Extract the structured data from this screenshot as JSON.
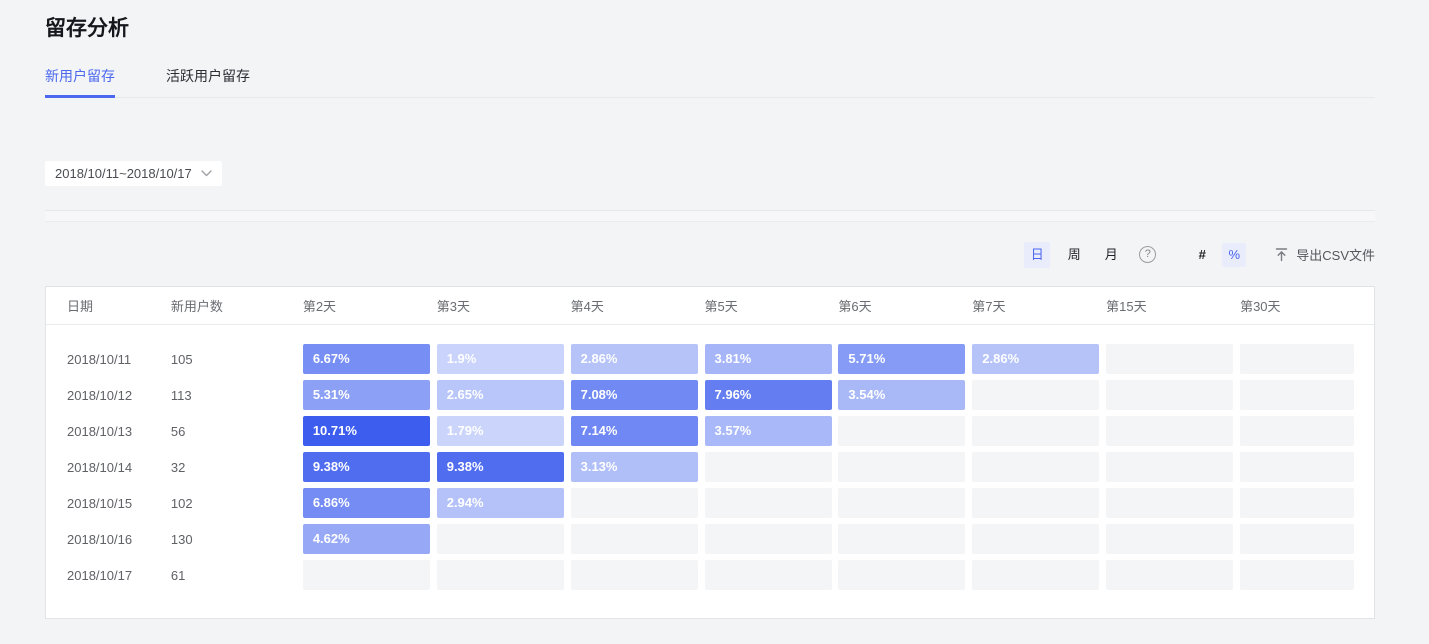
{
  "page": {
    "title": "留存分析"
  },
  "tabs": [
    {
      "label": "新用户留存",
      "active": true
    },
    {
      "label": "活跃用户留存",
      "active": false
    }
  ],
  "filters": {
    "date_range": "2018/10/11~2018/10/17"
  },
  "toolbar": {
    "granularity": [
      {
        "label": "日",
        "active": true
      },
      {
        "label": "周",
        "active": false
      },
      {
        "label": "月",
        "active": false
      }
    ],
    "help_icon": "question-mark",
    "format_toggles": [
      {
        "label": "#",
        "active": false
      },
      {
        "label": "%",
        "active": true
      }
    ],
    "export_label": "导出CSV文件"
  },
  "table": {
    "columns": [
      "日期",
      "新用户数",
      "第2天",
      "第3天",
      "第4天",
      "第5天",
      "第6天",
      "第7天",
      "第15天",
      "第30天"
    ],
    "rows": [
      {
        "date": "2018/10/11",
        "new_users": "105",
        "cells": [
          "6.67%",
          "1.9%",
          "2.86%",
          "3.81%",
          "5.71%",
          "2.86%",
          "",
          ""
        ]
      },
      {
        "date": "2018/10/12",
        "new_users": "113",
        "cells": [
          "5.31%",
          "2.65%",
          "7.08%",
          "7.96%",
          "3.54%",
          "",
          "",
          ""
        ]
      },
      {
        "date": "2018/10/13",
        "new_users": "56",
        "cells": [
          "10.71%",
          "1.79%",
          "7.14%",
          "3.57%",
          "",
          "",
          "",
          ""
        ]
      },
      {
        "date": "2018/10/14",
        "new_users": "32",
        "cells": [
          "9.38%",
          "9.38%",
          "3.13%",
          "",
          "",
          "",
          "",
          ""
        ]
      },
      {
        "date": "2018/10/15",
        "new_users": "102",
        "cells": [
          "6.86%",
          "2.94%",
          "",
          "",
          "",
          "",
          "",
          ""
        ]
      },
      {
        "date": "2018/10/16",
        "new_users": "130",
        "cells": [
          "4.62%",
          "",
          "",
          "",
          "",
          "",
          "",
          ""
        ]
      },
      {
        "date": "2018/10/17",
        "new_users": "61",
        "cells": [
          "",
          "",
          "",
          "",
          "",
          "",
          "",
          ""
        ]
      }
    ]
  },
  "heatmap": {
    "empty_color": "#f4f5f7",
    "min_color": "#d3dcfc",
    "max_color": "#3c5cee",
    "min_value": 1.5,
    "max_value": 10.8,
    "text_color": "#ffffff"
  },
  "colors": {
    "accent": "#4b68ee",
    "toggle_active_bg": "#e9ecfa",
    "page_bg": "#f3f4f6",
    "card_border": "#e2e3e6"
  }
}
